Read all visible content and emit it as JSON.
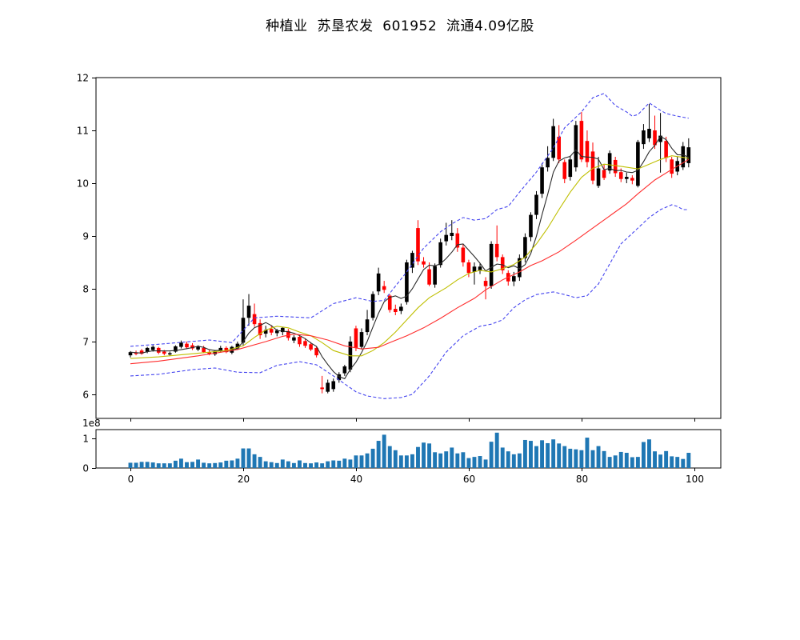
{
  "title": "种植业  苏垦农发  601952  流通4.09亿股",
  "stock": {
    "industry": "种植业",
    "name": "苏垦农发",
    "code": "601952",
    "float_shares_label": "流通4.09亿股"
  },
  "chart_data": {
    "type": "candlestick",
    "title": "种植业  苏垦农发  601952  流通4.09亿股",
    "panels": [
      "price",
      "volume"
    ],
    "x_axis": {
      "ticks": [
        0,
        20,
        40,
        60,
        80,
        100
      ],
      "range": [
        -6.1,
        104.7
      ],
      "grid": false
    },
    "price_axis": {
      "ticks": [
        6,
        7,
        8,
        9,
        10,
        11,
        12
      ],
      "range": [
        5.545,
        12.0
      ],
      "grid": false
    },
    "volume_axis": {
      "ticks": [
        0,
        1
      ],
      "offset_label": "1e8",
      "unit": 100000000,
      "range": [
        0,
        1.315
      ]
    },
    "candles": {
      "open": [
        6.74,
        6.79,
        6.83,
        6.81,
        6.84,
        6.88,
        6.81,
        6.77,
        6.81,
        6.9,
        6.96,
        6.93,
        6.85,
        6.88,
        6.8,
        6.76,
        6.82,
        6.88,
        6.79,
        6.87,
        6.98,
        7.45,
        7.52,
        7.35,
        7.15,
        7.24,
        7.16,
        7.18,
        7.2,
        7.02,
        7.09,
        7.01,
        6.95,
        6.88,
        6.13,
        6.05,
        6.1,
        6.27,
        6.4,
        6.47,
        7.25,
        6.9,
        7.18,
        7.45,
        7.95,
        8.05,
        7.87,
        7.62,
        7.58,
        7.75,
        8.4,
        9.15,
        8.52,
        8.37,
        8.08,
        8.45,
        8.9,
        9.0,
        9.05,
        8.78,
        8.5,
        8.32,
        8.35,
        8.15,
        8.05,
        8.85,
        8.6,
        8.3,
        8.14,
        8.22,
        8.58,
        8.98,
        9.4,
        9.8,
        10.3,
        10.48,
        10.88,
        10.4,
        10.12,
        10.3,
        11.18,
        10.8,
        10.6,
        9.95,
        10.25,
        10.24,
        10.44,
        10.21,
        10.08,
        10.1,
        9.95,
        10.74,
        10.85,
        11.0,
        10.78,
        10.8,
        10.45,
        10.22,
        10.3,
        10.38
      ],
      "high": [
        6.82,
        6.83,
        6.86,
        6.9,
        6.93,
        6.9,
        6.84,
        6.81,
        6.93,
        7.02,
        7.0,
        6.97,
        6.93,
        6.92,
        6.84,
        6.84,
        6.92,
        6.91,
        6.92,
        7.0,
        7.8,
        7.9,
        7.72,
        7.42,
        7.3,
        7.3,
        7.24,
        7.28,
        7.24,
        7.12,
        7.12,
        7.05,
        6.99,
        6.91,
        6.35,
        6.28,
        6.3,
        6.42,
        6.56,
        7.1,
        7.3,
        7.25,
        7.6,
        7.95,
        8.4,
        8.15,
        7.9,
        7.7,
        7.72,
        8.55,
        8.72,
        9.3,
        8.6,
        8.5,
        8.48,
        8.95,
        9.25,
        9.3,
        9.15,
        8.85,
        8.55,
        8.5,
        8.48,
        8.22,
        8.9,
        9.2,
        8.65,
        8.35,
        8.32,
        8.65,
        9.05,
        9.45,
        9.85,
        10.38,
        10.7,
        11.22,
        11.1,
        10.45,
        10.52,
        11.18,
        11.35,
        11.0,
        10.77,
        10.5,
        10.35,
        10.62,
        10.5,
        10.28,
        10.2,
        10.15,
        10.82,
        11.12,
        11.5,
        11.28,
        11.33,
        10.88,
        10.5,
        10.5,
        10.78,
        10.85
      ],
      "low": [
        6.7,
        6.74,
        6.75,
        6.78,
        6.81,
        6.76,
        6.74,
        6.73,
        6.79,
        6.87,
        6.86,
        6.84,
        6.82,
        6.78,
        6.74,
        6.73,
        6.79,
        6.78,
        6.76,
        6.84,
        6.93,
        7.3,
        7.28,
        7.05,
        7.08,
        7.12,
        7.1,
        7.12,
        7.02,
        6.97,
        6.9,
        6.88,
        6.82,
        6.7,
        6.02,
        6.02,
        6.05,
        6.22,
        6.35,
        6.42,
        6.82,
        6.85,
        7.12,
        7.4,
        7.88,
        7.92,
        7.55,
        7.5,
        7.52,
        7.7,
        8.3,
        8.45,
        8.4,
        8.05,
        8.02,
        8.4,
        8.82,
        8.92,
        8.7,
        8.42,
        8.22,
        8.08,
        8.28,
        7.8,
        8.0,
        8.52,
        8.28,
        8.06,
        8.05,
        8.15,
        8.5,
        8.9,
        9.32,
        9.72,
        10.22,
        10.42,
        10.38,
        10.0,
        10.05,
        10.22,
        10.4,
        10.3,
        9.98,
        9.91,
        10.06,
        10.18,
        10.12,
        10.02,
        10.0,
        9.98,
        9.92,
        10.65,
        10.78,
        10.65,
        10.2,
        10.4,
        10.1,
        10.15,
        10.25,
        10.3
      ],
      "close": [
        6.8,
        6.78,
        6.77,
        6.88,
        6.9,
        6.79,
        6.77,
        6.78,
        6.91,
        6.98,
        6.89,
        6.87,
        6.91,
        6.8,
        6.76,
        6.82,
        6.88,
        6.8,
        6.9,
        6.96,
        7.45,
        7.68,
        7.33,
        7.12,
        7.22,
        7.17,
        7.21,
        7.26,
        7.07,
        7.08,
        6.95,
        6.92,
        6.85,
        6.74,
        6.1,
        6.22,
        6.25,
        6.38,
        6.53,
        7.0,
        6.88,
        7.18,
        7.42,
        7.9,
        8.29,
        7.98,
        7.6,
        7.56,
        7.66,
        8.5,
        8.68,
        8.52,
        8.46,
        8.08,
        8.43,
        8.88,
        9.02,
        9.06,
        8.78,
        8.5,
        8.3,
        8.42,
        8.42,
        8.05,
        8.85,
        8.6,
        8.35,
        8.14,
        8.24,
        8.58,
        8.98,
        9.4,
        9.78,
        10.3,
        10.48,
        11.08,
        10.45,
        10.08,
        10.45,
        11.1,
        10.45,
        10.4,
        10.05,
        10.28,
        10.1,
        10.57,
        10.19,
        10.08,
        10.12,
        10.05,
        10.78,
        11.0,
        11.03,
        10.72,
        10.9,
        10.48,
        10.18,
        10.42,
        10.7,
        10.68
      ]
    },
    "volume_1e8": [
      0.18,
      0.18,
      0.21,
      0.21,
      0.19,
      0.16,
      0.16,
      0.16,
      0.25,
      0.32,
      0.2,
      0.21,
      0.29,
      0.18,
      0.16,
      0.17,
      0.19,
      0.25,
      0.26,
      0.32,
      0.67,
      0.67,
      0.47,
      0.38,
      0.23,
      0.2,
      0.17,
      0.29,
      0.23,
      0.17,
      0.26,
      0.17,
      0.16,
      0.19,
      0.16,
      0.23,
      0.26,
      0.25,
      0.32,
      0.29,
      0.43,
      0.43,
      0.5,
      0.66,
      0.93,
      1.14,
      0.75,
      0.61,
      0.43,
      0.43,
      0.47,
      0.72,
      0.87,
      0.84,
      0.54,
      0.5,
      0.57,
      0.7,
      0.5,
      0.54,
      0.34,
      0.38,
      0.41,
      0.29,
      0.9,
      1.21,
      0.7,
      0.57,
      0.47,
      0.5,
      0.96,
      0.93,
      0.75,
      0.95,
      0.85,
      0.98,
      0.84,
      0.75,
      0.66,
      0.64,
      0.61,
      1.04,
      0.61,
      0.75,
      0.58,
      0.38,
      0.43,
      0.55,
      0.52,
      0.37,
      0.38,
      0.89,
      0.98,
      0.57,
      0.46,
      0.58,
      0.4,
      0.38,
      0.31,
      0.52
    ],
    "overlays": {
      "ma_fast": {
        "name": "short moving average",
        "color": "#2b2b2b",
        "period": 5,
        "source": "close"
      },
      "ma_mid": {
        "name": "medium moving average",
        "color": "#bfbf00",
        "anchors_i": [
          0,
          5,
          11,
          17,
          20,
          22,
          24,
          26,
          28,
          30,
          32,
          34,
          36,
          39,
          41,
          43,
          45,
          47,
          49,
          51,
          53,
          56,
          58,
          60,
          62,
          64,
          66,
          68,
          70,
          72,
          74,
          76,
          78,
          80,
          82,
          84,
          87,
          90,
          92,
          94,
          96,
          98,
          99
        ],
        "anchors_v": [
          6.68,
          6.71,
          6.77,
          6.83,
          6.92,
          7.08,
          7.22,
          7.29,
          7.26,
          7.18,
          7.11,
          6.98,
          6.83,
          6.73,
          6.73,
          6.83,
          6.98,
          7.18,
          7.41,
          7.64,
          7.83,
          8.02,
          8.17,
          8.29,
          8.35,
          8.32,
          8.38,
          8.46,
          8.6,
          8.85,
          9.15,
          9.5,
          9.83,
          10.11,
          10.28,
          10.36,
          10.32,
          10.27,
          10.36,
          10.45,
          10.52,
          10.49,
          10.47
        ]
      },
      "ma_slow": {
        "name": "long moving average",
        "color": "#ff2d2d",
        "anchors_i": [
          0,
          5,
          12,
          19,
          24,
          27,
          29,
          32,
          35,
          38,
          41,
          44,
          46,
          49,
          52,
          55,
          58,
          61,
          63,
          66,
          69,
          71,
          73,
          76,
          79,
          82,
          85,
          88,
          90,
          93,
          96,
          99
        ],
        "anchors_v": [
          6.58,
          6.63,
          6.73,
          6.85,
          7.0,
          7.1,
          7.14,
          7.11,
          7.03,
          6.92,
          6.86,
          6.89,
          6.98,
          7.11,
          7.26,
          7.44,
          7.64,
          7.82,
          7.98,
          8.17,
          8.32,
          8.44,
          8.53,
          8.7,
          8.92,
          9.15,
          9.38,
          9.61,
          9.8,
          10.06,
          10.26,
          10.45
        ]
      },
      "band_upper": {
        "name": "upper bollinger band",
        "color": "#4545ef",
        "dashed": true,
        "anchors_i": [
          0,
          5,
          14,
          18,
          22,
          26,
          32,
          36,
          40,
          43,
          45,
          49,
          52,
          55,
          57,
          59,
          61,
          63,
          65,
          67,
          69,
          72,
          75,
          77,
          80,
          82,
          84,
          86,
          88,
          89,
          90,
          92,
          94,
          95,
          97,
          99
        ],
        "anchors_v": [
          6.91,
          6.95,
          7.03,
          6.98,
          7.45,
          7.48,
          7.45,
          7.72,
          7.83,
          7.76,
          7.78,
          8.32,
          8.77,
          9.08,
          9.23,
          9.35,
          9.3,
          9.33,
          9.5,
          9.56,
          9.83,
          10.21,
          10.67,
          11.05,
          11.35,
          11.62,
          11.7,
          11.47,
          11.35,
          11.27,
          11.3,
          11.52,
          11.38,
          11.32,
          11.27,
          11.23
        ]
      },
      "band_lower": {
        "name": "lower bollinger band",
        "color": "#4545ef",
        "dashed": true,
        "anchors_i": [
          0,
          5,
          11,
          15,
          19,
          23,
          26,
          30,
          33,
          36,
          38,
          40,
          42,
          45,
          48,
          50,
          53,
          56,
          59,
          62,
          64,
          66,
          68,
          70,
          72,
          75,
          77,
          79,
          81,
          83,
          85,
          87,
          90,
          92,
          94,
          96,
          97,
          98,
          99
        ],
        "anchors_v": [
          6.35,
          6.38,
          6.47,
          6.5,
          6.42,
          6.41,
          6.55,
          6.62,
          6.56,
          6.35,
          6.2,
          6.05,
          5.97,
          5.92,
          5.94,
          6.0,
          6.35,
          6.8,
          7.11,
          7.29,
          7.33,
          7.41,
          7.64,
          7.79,
          7.89,
          7.94,
          7.89,
          7.83,
          7.87,
          8.09,
          8.47,
          8.85,
          9.15,
          9.35,
          9.5,
          9.59,
          9.56,
          9.5,
          9.5
        ]
      }
    },
    "colors": {
      "up_candle": "#000000",
      "down_candle": "#ff0000",
      "volume_bar": "#1f77b4",
      "axis": "#000000",
      "background": "#ffffff"
    }
  }
}
